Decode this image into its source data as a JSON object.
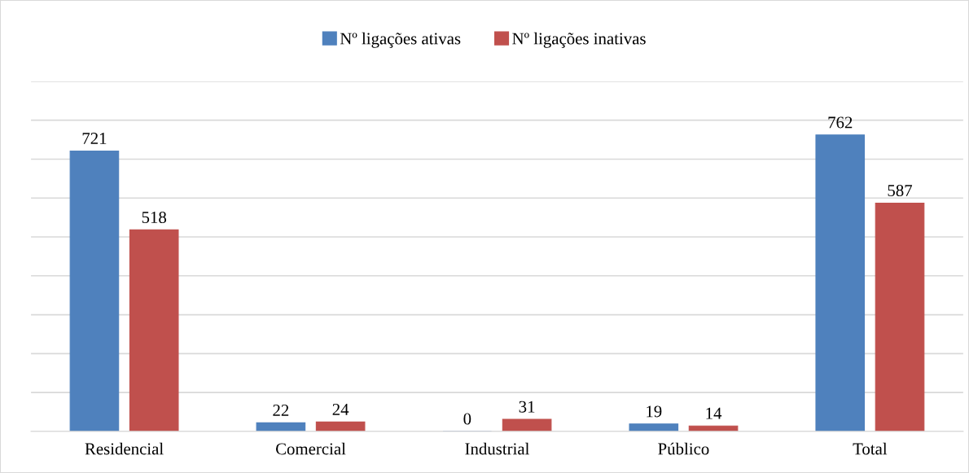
{
  "chart_data": {
    "type": "bar",
    "categories": [
      "Residencial",
      "Comercial",
      "Industrial",
      "Público",
      "Total"
    ],
    "series": [
      {
        "name": "Nº ligações ativas",
        "color": "#4f81bd",
        "values": [
          721,
          22,
          0,
          19,
          762
        ]
      },
      {
        "name": "Nº ligações inativas",
        "color": "#c0504d",
        "values": [
          518,
          24,
          31,
          14,
          587
        ]
      }
    ],
    "ylim": [
      0,
      900
    ],
    "yticks": [
      {
        "value": 0,
        "label": null
      },
      {
        "value": 100,
        "label": null
      },
      {
        "value": 200,
        "label": null
      },
      {
        "value": 300,
        "label": null
      },
      {
        "value": 400,
        "label": null
      },
      {
        "value": 500,
        "label": null
      },
      {
        "value": 600,
        "label": null
      },
      {
        "value": 700,
        "label": null
      },
      {
        "value": 800,
        "label": null
      },
      {
        "value": 900,
        "label": null
      }
    ],
    "tick_labels": "x",
    "grid": "y",
    "legend": "top",
    "data_labels": true
  }
}
